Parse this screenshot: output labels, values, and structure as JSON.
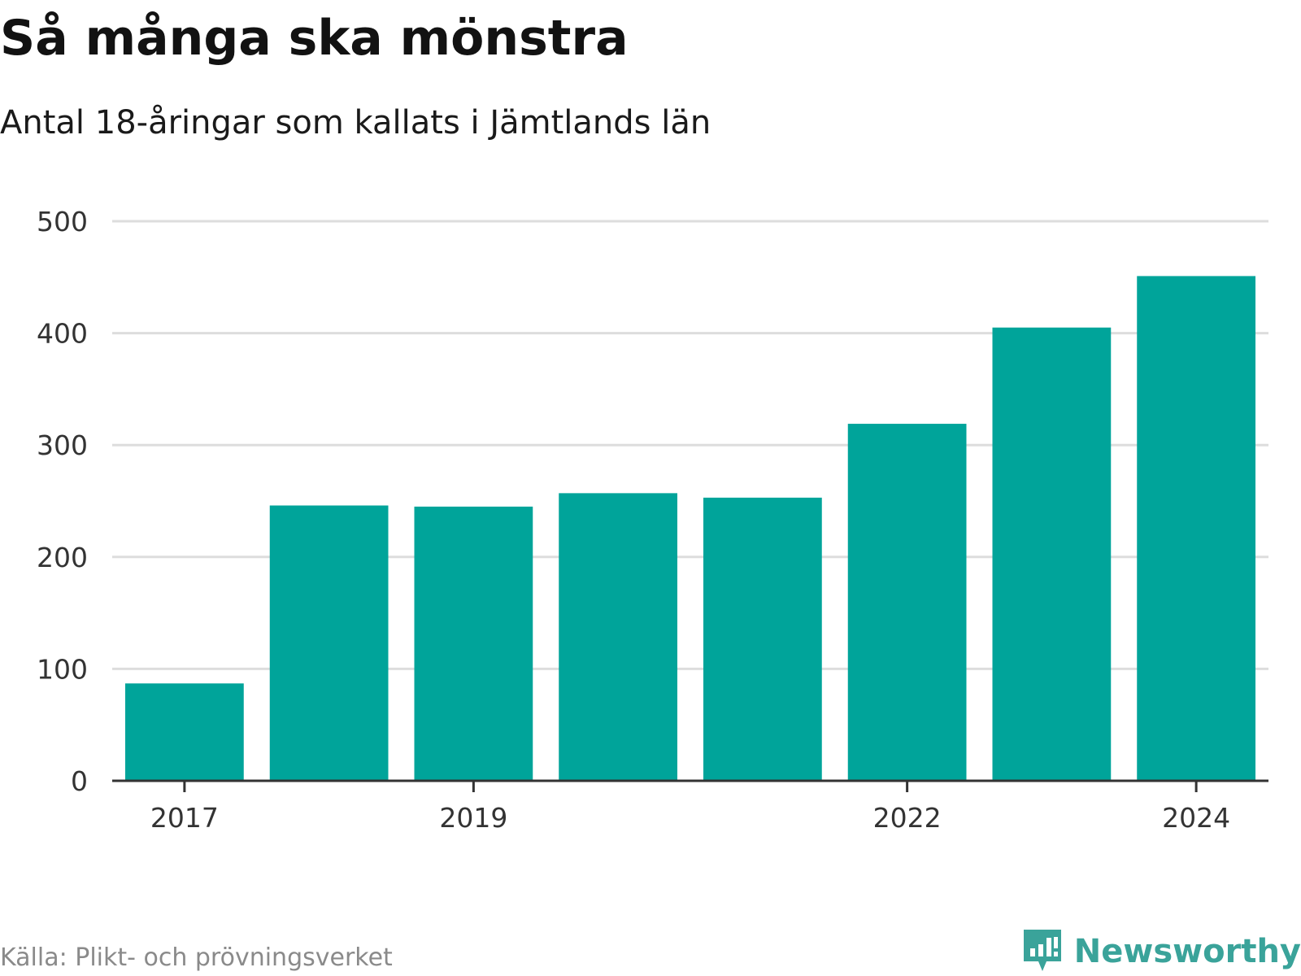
{
  "header": {
    "title": "Så många ska mönstra",
    "subtitle": "Antal 18-åringar som kallats i Jämtlands län"
  },
  "footer": {
    "source": "Källa: Plikt- och prövningsverket",
    "brand": "Newsworthy",
    "brand_icon": "bar-chart-speech-bubble-icon"
  },
  "colors": {
    "bar": "#00a49a",
    "grid": "#dddddd",
    "axis": "#333333",
    "brand": "#3aa39a"
  },
  "chart_data": {
    "type": "bar",
    "title": "Så många ska mönstra",
    "subtitle": "Antal 18-åringar som kallats i Jämtlands län",
    "xlabel": "",
    "ylabel": "",
    "categories": [
      "2017",
      "2018",
      "2019",
      "2020",
      "2021",
      "2022",
      "2023",
      "2024"
    ],
    "x_tick_labels": [
      "2017",
      "2019",
      "2022",
      "2024"
    ],
    "values": [
      87,
      246,
      245,
      257,
      253,
      319,
      405,
      451
    ],
    "y_ticks": [
      0,
      100,
      200,
      300,
      400,
      500
    ],
    "ylim": [
      0,
      500
    ],
    "grid": true,
    "legend": "none"
  }
}
